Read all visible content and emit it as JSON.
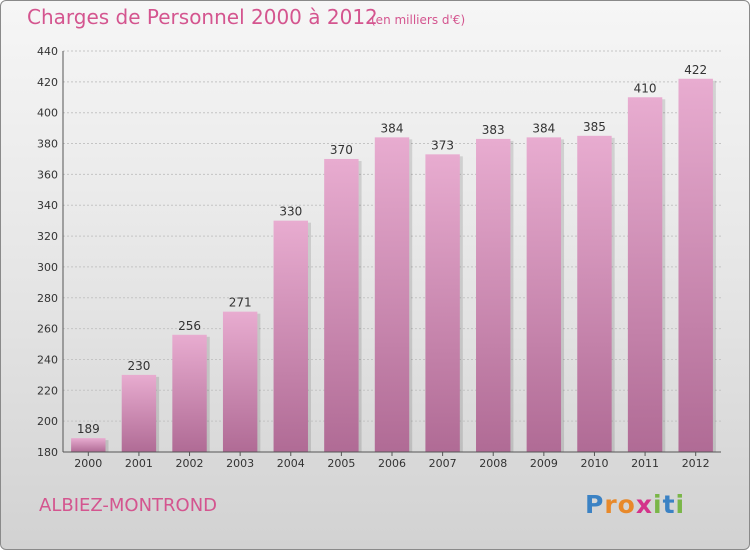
{
  "title": "Charges de Personnel 2000 à 2012",
  "unit_label": "(en milliers d'€)",
  "location": "ALBIEZ-MONTROND",
  "brand": {
    "letters": [
      {
        "char": "P",
        "color": "#3b82c4"
      },
      {
        "char": "r",
        "color": "#e8892a"
      },
      {
        "char": "o",
        "color": "#e8892a"
      },
      {
        "char": "x",
        "color": "#d4338a"
      },
      {
        "char": "i",
        "color": "#7ab648"
      },
      {
        "char": "t",
        "color": "#3b82c4"
      },
      {
        "char": "i",
        "color": "#7ab648"
      }
    ]
  },
  "colors": {
    "title": "#d4558f",
    "bar_top": "#e8acd0",
    "bar_bottom": "#b06b95"
  },
  "chart_data": {
    "type": "bar",
    "categories": [
      "2000",
      "2001",
      "2002",
      "2003",
      "2004",
      "2005",
      "2006",
      "2007",
      "2008",
      "2009",
      "2010",
      "2011",
      "2012"
    ],
    "values": [
      189,
      230,
      256,
      271,
      330,
      370,
      384,
      373,
      383,
      384,
      385,
      410,
      422
    ],
    "ylim": [
      180,
      440
    ],
    "yticks": [
      180,
      200,
      220,
      240,
      260,
      280,
      300,
      320,
      340,
      360,
      380,
      400,
      420,
      440
    ],
    "title": "Charges de Personnel 2000 à 2012",
    "xlabel": "",
    "ylabel": "",
    "grid": true
  }
}
